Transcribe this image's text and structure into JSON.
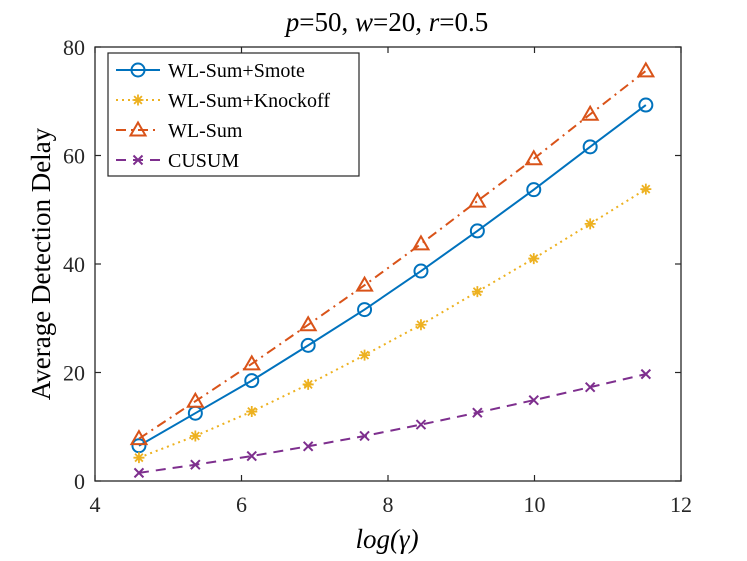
{
  "chart_data": {
    "type": "line",
    "title": "p=50, w=20, r=0.5",
    "title_parts": [
      {
        "text": "p",
        "italic": true
      },
      {
        "text": "=50, ",
        "italic": false
      },
      {
        "text": "w",
        "italic": true
      },
      {
        "text": "=20, ",
        "italic": false
      },
      {
        "text": "r",
        "italic": true
      },
      {
        "text": "=0.5",
        "italic": false
      }
    ],
    "xlabel": "log(γ)",
    "ylabel": "Average Detection Delay",
    "xlim": [
      4,
      12
    ],
    "ylim": [
      0,
      80
    ],
    "xticks": [
      "4",
      "6",
      "8",
      "10",
      "12"
    ],
    "yticks": [
      "0",
      "20",
      "40",
      "60",
      "80"
    ],
    "x": [
      4.6,
      5.37,
      6.14,
      6.91,
      7.68,
      8.45,
      9.22,
      9.99,
      10.76,
      11.52
    ],
    "legend_position": "top-left",
    "series": [
      {
        "name": "WL-Sum+Smote",
        "color": "#0072BD",
        "marker": "circle",
        "line_style": "solid",
        "values": [
          6.5,
          12.5,
          18.5,
          25.0,
          31.6,
          38.7,
          46.1,
          53.7,
          61.6,
          69.3
        ]
      },
      {
        "name": "WL-Sum+Knockoff",
        "color": "#EDB120",
        "marker": "asterisk",
        "line_style": "dotted",
        "values": [
          4.3,
          8.3,
          12.8,
          17.8,
          23.2,
          28.8,
          34.9,
          41.0,
          47.4,
          53.8
        ]
      },
      {
        "name": "WL-Sum",
        "color": "#D95319",
        "marker": "triangle",
        "line_style": "dashdot",
        "values": [
          7.8,
          14.7,
          21.6,
          28.8,
          36.1,
          43.7,
          51.6,
          59.4,
          67.6,
          75.6
        ]
      },
      {
        "name": "CUSUM",
        "color": "#7E2F8E",
        "marker": "x",
        "line_style": "dashed",
        "values": [
          1.5,
          3.0,
          4.6,
          6.4,
          8.3,
          10.4,
          12.6,
          14.9,
          17.3,
          19.7
        ]
      }
    ]
  }
}
